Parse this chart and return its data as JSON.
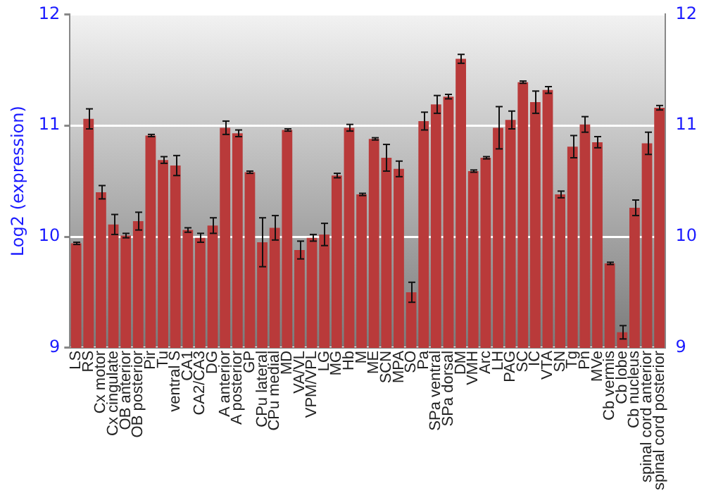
{
  "chart_data": {
    "type": "bar",
    "ylabel": "Log2 (expression)",
    "categories": [
      "LS",
      "RS",
      "Cx motor",
      "Cx cingulate",
      "OB anterior",
      "OB posterior",
      "Pir",
      "Tu",
      "ventral S",
      "CA1",
      "CA2/CA3",
      "DG",
      "A anterior",
      "A posterior",
      "GP",
      "CPu lateral",
      "CPu medial",
      "MD",
      "VA/VL",
      "VPM/VPL",
      "LG",
      "MG",
      "Hb",
      "M",
      "ME",
      "SCN",
      "MPA",
      "SO",
      "Pa",
      "SPa ventral",
      "SPa dorsal",
      "DM",
      "VMH",
      "Arc",
      "LH",
      "PAG",
      "SC",
      "IC",
      "VTA",
      "SN",
      "Tg",
      "Pn",
      "MVe",
      "Cb vermis",
      "Cb lobe",
      "Cb nucleus",
      "spinal cord anterior",
      "spinal cord posterior"
    ],
    "series": [
      {
        "color": "#b93a3a",
        "values": [
          9.94,
          11.06,
          10.4,
          10.11,
          10.01,
          10.14,
          10.91,
          10.69,
          10.64,
          10.06,
          9.99,
          10.1,
          10.98,
          10.93,
          10.58,
          9.95,
          10.08,
          10.96,
          9.88,
          9.99,
          10.02,
          10.55,
          10.98,
          10.38,
          10.88,
          10.71,
          10.61,
          9.5,
          11.04,
          11.19,
          11.26,
          11.6,
          10.59,
          10.71,
          10.98,
          11.05,
          11.39,
          11.21,
          11.32,
          10.38,
          10.81,
          11.01,
          10.85,
          9.76,
          9.14,
          10.26,
          10.84,
          11.16
        ],
        "errors": [
          0.01,
          0.09,
          0.06,
          0.09,
          0.02,
          0.08,
          0.01,
          0.03,
          0.09,
          0.02,
          0.04,
          0.07,
          0.06,
          0.03,
          0.01,
          0.22,
          0.11,
          0.01,
          0.08,
          0.03,
          0.1,
          0.02,
          0.03,
          0.01,
          0.01,
          0.12,
          0.07,
          0.09,
          0.08,
          0.08,
          0.02,
          0.04,
          0.01,
          0.01,
          0.19,
          0.08,
          0.01,
          0.1,
          0.03,
          0.03,
          0.1,
          0.07,
          0.05,
          0.01,
          0.06,
          0.07,
          0.1,
          0.02
        ]
      }
    ],
    "ylim": [
      9,
      12
    ],
    "yticks": [
      9,
      10,
      11,
      12
    ],
    "y2lim": [
      9,
      12
    ],
    "y2ticks": [
      9,
      10,
      11,
      12
    ],
    "grid": "y",
    "legend": false
  }
}
